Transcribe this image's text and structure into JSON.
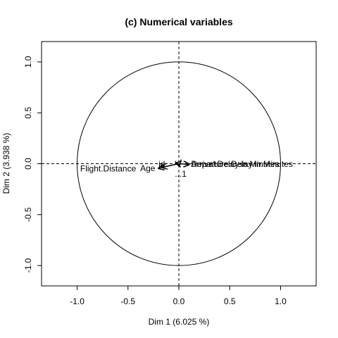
{
  "chart_data": {
    "type": "scatter",
    "subtype": "pca-variable-correlation-circle",
    "title": "(c) Numerical variables",
    "xlabel": "Dim 1 (6.025 %)",
    "ylabel": "Dim 2 (3.938 %)",
    "xlim": [
      -1.35,
      1.35
    ],
    "ylim": [
      -1.2,
      1.2
    ],
    "xticks": [
      -1.0,
      -0.5,
      0.0,
      0.5,
      1.0
    ],
    "yticks": [
      -1.0,
      -0.5,
      0.0,
      0.5,
      1.0
    ],
    "xtick_labels": [
      "-1.0",
      "-0.5",
      "0.0",
      "0.5",
      "1.0"
    ],
    "ytick_labels": [
      "-1.0",
      "-0.5",
      "0.0",
      "0.5",
      "1.0"
    ],
    "unit_circle": true,
    "reference_lines": {
      "x": 0,
      "y": 0,
      "style": "dashed"
    },
    "grid": false,
    "variables": [
      {
        "name": "Departure.Delay.in.Minutes",
        "x": 0.1,
        "y": -0.005
      },
      {
        "name": "Arrival.Delay.in.Minutes",
        "x": 0.1,
        "y": -0.008
      },
      {
        "name": "Flight.Distance",
        "x": -0.2,
        "y": -0.045
      },
      {
        "name": "Age",
        "x": -0.17,
        "y": -0.035
      },
      {
        "name": "id",
        "x": -0.03,
        "y": 0.005
      },
      {
        "name": "...1",
        "x": 0.005,
        "y": -0.02
      }
    ],
    "label_text": [
      {
        "text": "Flight.Distance",
        "x": -0.97,
        "y": -0.05,
        "anchor": "start"
      },
      {
        "text": "Age",
        "x": -0.38,
        "y": -0.045,
        "anchor": "start"
      },
      {
        "text": "id",
        "x": -0.2,
        "y": -0.005,
        "anchor": "start"
      },
      {
        "text": "Departure.Delay.in.Minutes",
        "x": 0.12,
        "y": -0.005,
        "anchor": "start"
      },
      {
        "text": "Arrival.Delay.in.Minutes",
        "x": 0.12,
        "y": -0.005,
        "anchor": "start"
      },
      {
        "text": "...1",
        "x": -0.04,
        "y": -0.1,
        "anchor": "start"
      }
    ]
  }
}
